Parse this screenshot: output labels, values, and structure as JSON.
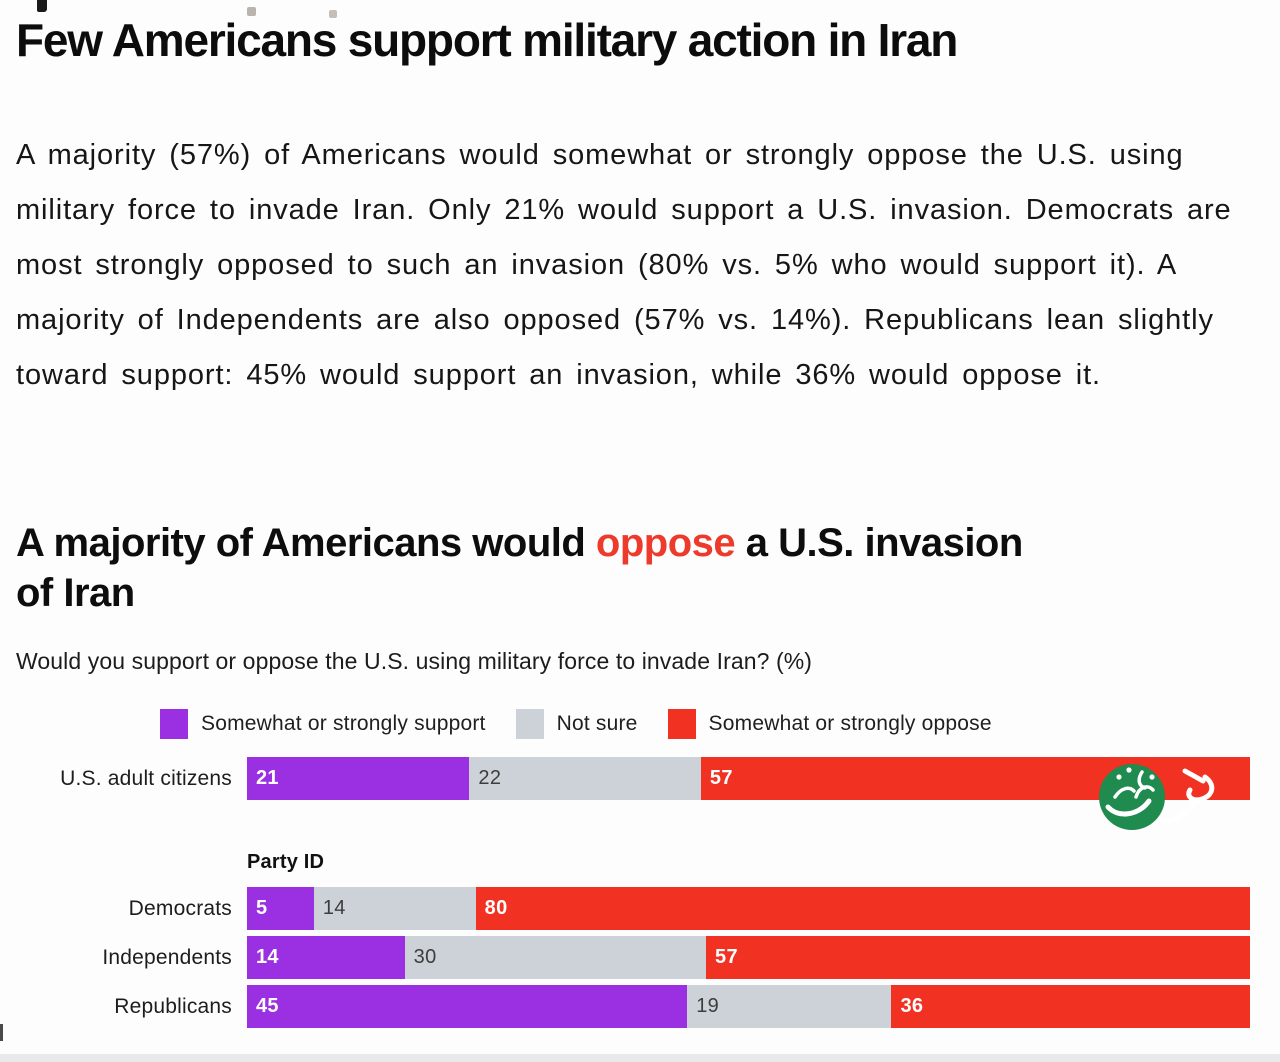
{
  "headline": "Few Americans support military action in Iran",
  "paragraph": "A majority (57%) of Americans would somewhat or strongly oppose the U.S. using military force to invade Iran. Only 21% would support a U.S. invasion. Democrats are most strongly opposed to such an invasion (80% vs. 5% who would support it). A majority of Independents are also opposed (57% vs. 14%). Republicans lean slightly toward support: 45% would support an invasion, while 36% would oppose it.",
  "chart_title": {
    "before": "A majority of Americans would ",
    "highlight": "oppose",
    "after": " a U.S. invasion",
    "line2": "of Iran",
    "highlight_color": "#ee3a2b"
  },
  "chart_subtitle": "Would you support or oppose the U.S. using military force to invade Iran? (%)",
  "party_group_label": "Party ID",
  "chart_data": {
    "type": "bar",
    "variant": "stacked-horizontal-percent",
    "unit": "%",
    "xlim": [
      0,
      100
    ],
    "legend_position": "top",
    "grid": false,
    "series": [
      {
        "name": "Somewhat or strongly support",
        "color": "#9b30e2",
        "value_label_color": "#ffffff"
      },
      {
        "name": "Not sure",
        "color": "#cdd2d9",
        "value_label_color": "#3d3d3d"
      },
      {
        "name": "Somewhat or strongly oppose",
        "color": "#f13122",
        "value_label_color": "#ffffff"
      }
    ],
    "categories": [
      "U.S. adult citizens",
      "Democrats",
      "Independents",
      "Republicans"
    ],
    "rows": [
      {
        "category": "U.S. adult citizens",
        "group": "",
        "values": [
          21,
          22,
          57
        ]
      },
      {
        "category": "Democrats",
        "group": "Party ID",
        "values": [
          5,
          14,
          80
        ]
      },
      {
        "category": "Independents",
        "group": "Party ID",
        "values": [
          14,
          30,
          57
        ]
      },
      {
        "category": "Republicans",
        "group": "Party ID",
        "values": [
          45,
          19,
          36
        ]
      }
    ]
  },
  "watermark": {
    "description": "Green circular Persian news logo with white calligraphy (خبرفوری)",
    "circle_color": "#1f8b4e",
    "script_color": "#ffffff"
  }
}
